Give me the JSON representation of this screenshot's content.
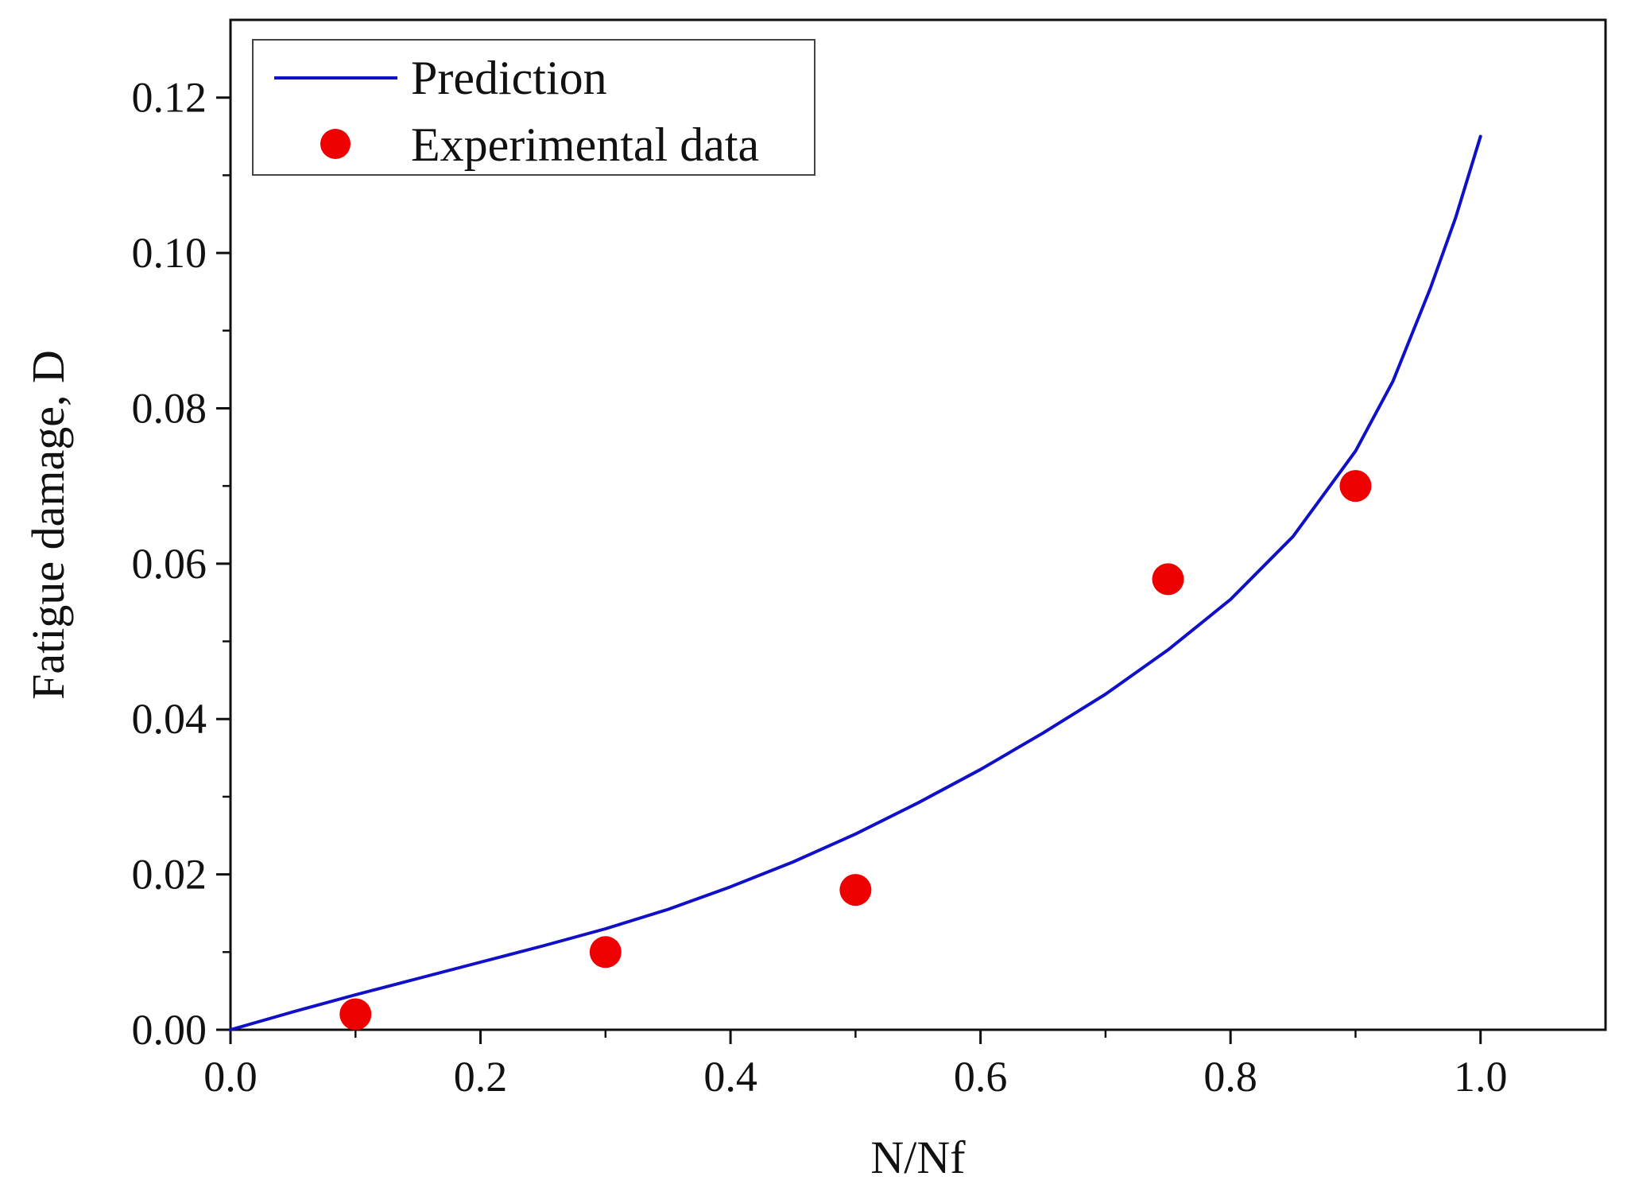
{
  "chart_data": {
    "type": "line",
    "title": "",
    "xlabel": "N/Nf",
    "ylabel": "Fatigue damage, D",
    "xlim": [
      0.0,
      1.1
    ],
    "ylim": [
      0.0,
      0.13
    ],
    "x_ticks": [
      0.0,
      0.2,
      0.4,
      0.6,
      0.8,
      1.0
    ],
    "x_tick_labels": [
      "0.0",
      "0.2",
      "0.4",
      "0.6",
      "0.8",
      "1.0"
    ],
    "y_ticks": [
      0.0,
      0.02,
      0.04,
      0.06,
      0.08,
      0.1,
      0.12
    ],
    "y_tick_labels": [
      "0.00",
      "0.02",
      "0.04",
      "0.06",
      "0.08",
      "0.10",
      "0.12"
    ],
    "grid": false,
    "legend_position": "top-left",
    "series": [
      {
        "name": "Prediction",
        "kind": "line",
        "color": "#1010c8",
        "x": [
          0.0,
          0.05,
          0.1,
          0.15,
          0.2,
          0.25,
          0.3,
          0.35,
          0.4,
          0.45,
          0.5,
          0.55,
          0.6,
          0.65,
          0.7,
          0.75,
          0.8,
          0.85,
          0.9,
          0.93,
          0.96,
          0.98,
          1.0
        ],
        "y": [
          0.0,
          0.0023,
          0.0045,
          0.0066,
          0.0087,
          0.0108,
          0.013,
          0.0155,
          0.0184,
          0.0216,
          0.0252,
          0.0292,
          0.0335,
          0.0382,
          0.0432,
          0.0489,
          0.0554,
          0.0635,
          0.0745,
          0.0835,
          0.0955,
          0.1045,
          0.115
        ]
      },
      {
        "name": "Experimental data",
        "kind": "scatter",
        "color": "#ee0000",
        "x": [
          0.1,
          0.3,
          0.5,
          0.75,
          0.9
        ],
        "y": [
          0.002,
          0.01,
          0.018,
          0.058,
          0.07
        ]
      }
    ]
  }
}
